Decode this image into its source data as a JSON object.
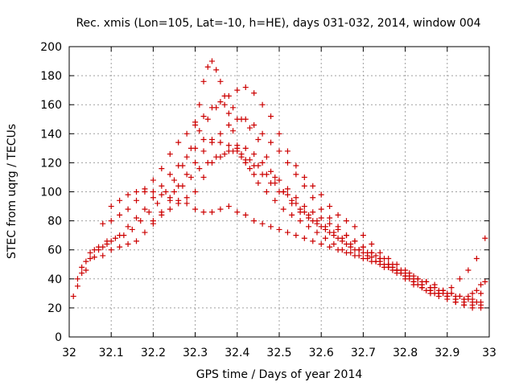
{
  "chart_data": {
    "type": "scatter",
    "title": "Rec. xmis (Lon=105, Lat=-10, h=HE), days 031-032, 2014, window 004",
    "xlabel": "GPS time / Days of year 2014",
    "ylabel": "STEC from uqrg / TECUs",
    "xlim": [
      32,
      33
    ],
    "ylim": [
      0,
      200
    ],
    "xticks": [
      "32",
      "32.1",
      "32.2",
      "32.3",
      "32.4",
      "32.5",
      "32.6",
      "32.7",
      "32.8",
      "32.9",
      "33"
    ],
    "yticks": [
      "0",
      "20",
      "40",
      "60",
      "80",
      "100",
      "120",
      "140",
      "160",
      "180",
      "200"
    ],
    "grid": true,
    "marker": "+",
    "color": "#cc0000",
    "series": [
      {
        "x": [
          32.01,
          32.02,
          32.03,
          32.04,
          32.05,
          32.06,
          32.07,
          32.08,
          32.09,
          32.1,
          32.12,
          32.14,
          32.16,
          32.18,
          32.2,
          32.22,
          32.24,
          32.26,
          32.28,
          32.3,
          32.32,
          32.34,
          32.36,
          32.38,
          32.4,
          32.42,
          32.44,
          32.46,
          32.48,
          32.5,
          32.52,
          32.54,
          32.56,
          32.58,
          32.6,
          32.62,
          32.64,
          32.66,
          32.68,
          32.7,
          32.72,
          32.74,
          32.76,
          32.78,
          32.8,
          32.82,
          32.84,
          32.86,
          32.88,
          32.9,
          32.92,
          32.94,
          32.96,
          32.98,
          32.02,
          32.04,
          32.06,
          32.08,
          32.1,
          32.12,
          32.14,
          32.16,
          32.18,
          32.2,
          32.22,
          32.24,
          32.26,
          32.28,
          32.3,
          32.32,
          32.34,
          32.36,
          32.38,
          32.4,
          32.42,
          32.44,
          32.46,
          32.48,
          32.5,
          32.52,
          32.54,
          32.56,
          32.58,
          32.6,
          32.62,
          32.64,
          32.66,
          32.68,
          32.7,
          32.72,
          32.74,
          32.76,
          32.78,
          32.8,
          32.82,
          32.84,
          32.86,
          32.88,
          32.9,
          32.92,
          32.94,
          32.96,
          32.98,
          32.03,
          32.05,
          32.07,
          32.09,
          32.11,
          32.13,
          32.15,
          32.17,
          32.19,
          32.21,
          32.23,
          32.25,
          32.27,
          32.29,
          32.31,
          32.33,
          32.35,
          32.37,
          32.39,
          32.41,
          32.43,
          32.45,
          32.47,
          32.49,
          32.51,
          32.53,
          32.55,
          32.57,
          32.59,
          32.61,
          32.63,
          32.65,
          32.67,
          32.69,
          32.71,
          32.73,
          32.75,
          32.77,
          32.79,
          32.81,
          32.83,
          32.85,
          32.87,
          32.89,
          32.91,
          32.93,
          32.95,
          32.97,
          32.99,
          32.08,
          32.1,
          32.12,
          32.14,
          32.16,
          32.18,
          32.2,
          32.22,
          32.24,
          32.26,
          32.28,
          32.3,
          32.32,
          32.34,
          32.36,
          32.38,
          32.4,
          32.42,
          32.44,
          32.46,
          32.48,
          32.5,
          32.52,
          32.54,
          32.56,
          32.58,
          32.6,
          32.62,
          32.64,
          32.66,
          32.68,
          32.7,
          32.72,
          32.74,
          32.76,
          32.78,
          32.8,
          32.82,
          32.84,
          32.86,
          32.88,
          32.9,
          32.92,
          32.94,
          32.96,
          32.98,
          32.1,
          32.12,
          32.14,
          32.16,
          32.18,
          32.2,
          32.22,
          32.24,
          32.26,
          32.28,
          32.3,
          32.32,
          32.34,
          32.36,
          32.38,
          32.4,
          32.42,
          32.44,
          32.46,
          32.48,
          32.5,
          32.52,
          32.54,
          32.56,
          32.58,
          32.6,
          32.62,
          32.64,
          32.66,
          32.68,
          32.7,
          32.72,
          32.74,
          32.76,
          32.78,
          32.8,
          32.82,
          32.84,
          32.86,
          32.88,
          32.9,
          32.92,
          32.94,
          32.96,
          32.98,
          32.2,
          32.22,
          32.24,
          32.26,
          32.28,
          32.3,
          32.32,
          32.34,
          32.36,
          32.38,
          32.4,
          32.42,
          32.44,
          32.46,
          32.48,
          32.5,
          32.52,
          32.54,
          32.56,
          32.58,
          32.6,
          32.62,
          32.64,
          32.66,
          32.68,
          32.7,
          32.72,
          32.74,
          32.76,
          32.78,
          32.8,
          32.82,
          32.84,
          32.86,
          32.88,
          32.9,
          32.92,
          32.94,
          32.96,
          32.98,
          32.25,
          32.27,
          32.29,
          32.31,
          32.33,
          32.35,
          32.37,
          32.39,
          32.41,
          32.43,
          32.45,
          32.47,
          32.49,
          32.51,
          32.53,
          32.55,
          32.57,
          32.59,
          32.61,
          32.63,
          32.65,
          32.67,
          32.69,
          32.71,
          32.73,
          32.75,
          32.77,
          32.79,
          32.81,
          32.83,
          32.85,
          32.87,
          32.89,
          32.91,
          32.93,
          32.95,
          32.97,
          32.3,
          32.31,
          32.32,
          32.33,
          32.34,
          32.35,
          32.36,
          32.37,
          32.38,
          32.39,
          32.4,
          32.41,
          32.42,
          32.43,
          32.44,
          32.45,
          32.47,
          32.49,
          32.51,
          32.53,
          32.55,
          32.57,
          32.59,
          32.61,
          32.63,
          32.65,
          32.67,
          32.69,
          32.71,
          32.73,
          32.75,
          32.77,
          32.79,
          32.81,
          32.83,
          32.85,
          32.87,
          32.89,
          32.91,
          32.93,
          32.95,
          32.97,
          32.99
        ],
        "y": [
          28,
          35,
          44,
          52,
          58,
          60,
          62,
          62,
          64,
          66,
          70,
          76,
          82,
          88,
          96,
          104,
          112,
          118,
          124,
          130,
          136,
          136,
          134,
          132,
          128,
          122,
          118,
          112,
          106,
          100,
          98,
          92,
          86,
          80,
          76,
          72,
          68,
          64,
          60,
          58,
          55,
          52,
          48,
          44,
          40,
          36,
          34,
          32,
          30,
          28,
          26,
          24,
          26,
          30,
          40,
          46,
          55,
          56,
          60,
          62,
          64,
          66,
          72,
          78,
          86,
          94,
          104,
          112,
          120,
          128,
          134,
          140,
          146,
          150,
          150,
          146,
          140,
          134,
          128,
          120,
          112,
          104,
          96,
          88,
          82,
          76,
          70,
          66,
          62,
          58,
          54,
          50,
          46,
          42,
          38,
          34,
          32,
          30,
          28,
          26,
          26,
          30,
          36,
          48,
          54,
          60,
          66,
          68,
          70,
          74,
          80,
          86,
          92,
          100,
          108,
          118,
          130,
          142,
          150,
          158,
          160,
          158,
          150,
          144,
          136,
          124,
          110,
          100,
          92,
          86,
          82,
          78,
          74,
          70,
          66,
          62,
          60,
          58,
          56,
          54,
          50,
          46,
          44,
          40,
          38,
          34,
          32,
          30,
          28,
          28,
          32,
          38,
          78,
          80,
          84,
          88,
          94,
          100,
          108,
          116,
          126,
          134,
          140,
          146,
          152,
          158,
          162,
          166,
          170,
          172,
          168,
          160,
          152,
          140,
          128,
          118,
          110,
          104,
          98,
          90,
          84,
          80,
          76,
          70,
          64,
          58,
          54,
          50,
          46,
          42,
          38,
          34,
          30,
          28,
          24,
          22,
          22,
          24,
          90,
          94,
          98,
          100,
          102,
          100,
          98,
          96,
          94,
          96,
          100,
          110,
          120,
          124,
          128,
          132,
          130,
          126,
          120,
          114,
          108,
          102,
          96,
          90,
          86,
          82,
          78,
          74,
          70,
          66,
          62,
          58,
          54,
          50,
          46,
          42,
          38,
          34,
          30,
          28,
          26,
          24,
          22,
          20,
          20,
          80,
          84,
          88,
          92,
          92,
          88,
          86,
          86,
          88,
          90,
          86,
          84,
          80,
          78,
          76,
          74,
          72,
          70,
          68,
          66,
          64,
          62,
          60,
          58,
          56,
          54,
          52,
          50,
          48,
          46,
          44,
          40,
          36,
          34,
          32,
          30,
          28,
          26,
          24,
          22,
          100,
          104,
          110,
          116,
          120,
          124,
          126,
          128,
          126,
          122,
          118,
          112,
          106,
          100,
          94,
          88,
          84,
          80,
          76,
          72,
          68,
          64,
          60,
          56,
          52,
          48,
          46,
          44,
          42,
          40,
          38,
          36,
          32,
          30,
          28,
          26,
          24,
          148,
          160,
          176,
          186,
          190,
          184,
          176,
          166,
          154,
          142,
          130,
          124,
          120,
          116,
          112,
          106,
          100,
          94,
          88,
          84,
          80,
          76,
          72,
          68,
          64,
          60,
          58,
          56,
          54,
          52,
          50,
          48,
          44,
          40,
          36,
          32,
          30,
          30,
          34,
          40,
          46,
          54,
          68
        ]
      }
    ]
  }
}
